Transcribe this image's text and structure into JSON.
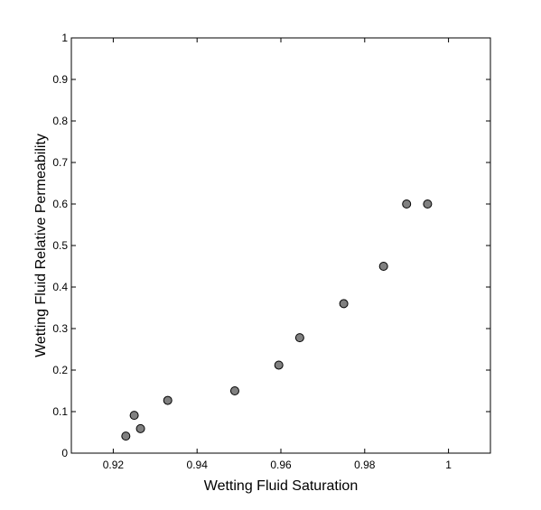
{
  "chart_data": {
    "type": "scatter",
    "xlabel": "Wetting Fluid Saturation",
    "ylabel": "Wetting Fluid Relative Permeability",
    "xlim": [
      0.91,
      1.01
    ],
    "ylim": [
      0,
      1
    ],
    "xticks": [
      0.92,
      0.94,
      0.96,
      0.98,
      1
    ],
    "xtick_labels": [
      "0.92",
      "0.94",
      "0.96",
      "0.98",
      "1"
    ],
    "yticks": [
      0,
      0.1,
      0.2,
      0.3,
      0.4,
      0.5,
      0.6,
      0.7,
      0.8,
      0.9,
      1
    ],
    "ytick_labels": [
      "0",
      "0.1",
      "0.2",
      "0.3",
      "0.4",
      "0.5",
      "0.6",
      "0.7",
      "0.8",
      "0.9",
      "1"
    ],
    "grid": false,
    "marker_color": "#808080",
    "series": [
      {
        "points": [
          {
            "x": 0.923,
            "y": 0.041
          },
          {
            "x": 0.925,
            "y": 0.091
          },
          {
            "x": 0.9265,
            "y": 0.059
          },
          {
            "x": 0.933,
            "y": 0.127
          },
          {
            "x": 0.949,
            "y": 0.15
          },
          {
            "x": 0.9595,
            "y": 0.212
          },
          {
            "x": 0.9645,
            "y": 0.278
          },
          {
            "x": 0.975,
            "y": 0.36
          },
          {
            "x": 0.9845,
            "y": 0.45
          },
          {
            "x": 0.99,
            "y": 0.6
          },
          {
            "x": 0.995,
            "y": 0.6
          }
        ]
      }
    ]
  }
}
